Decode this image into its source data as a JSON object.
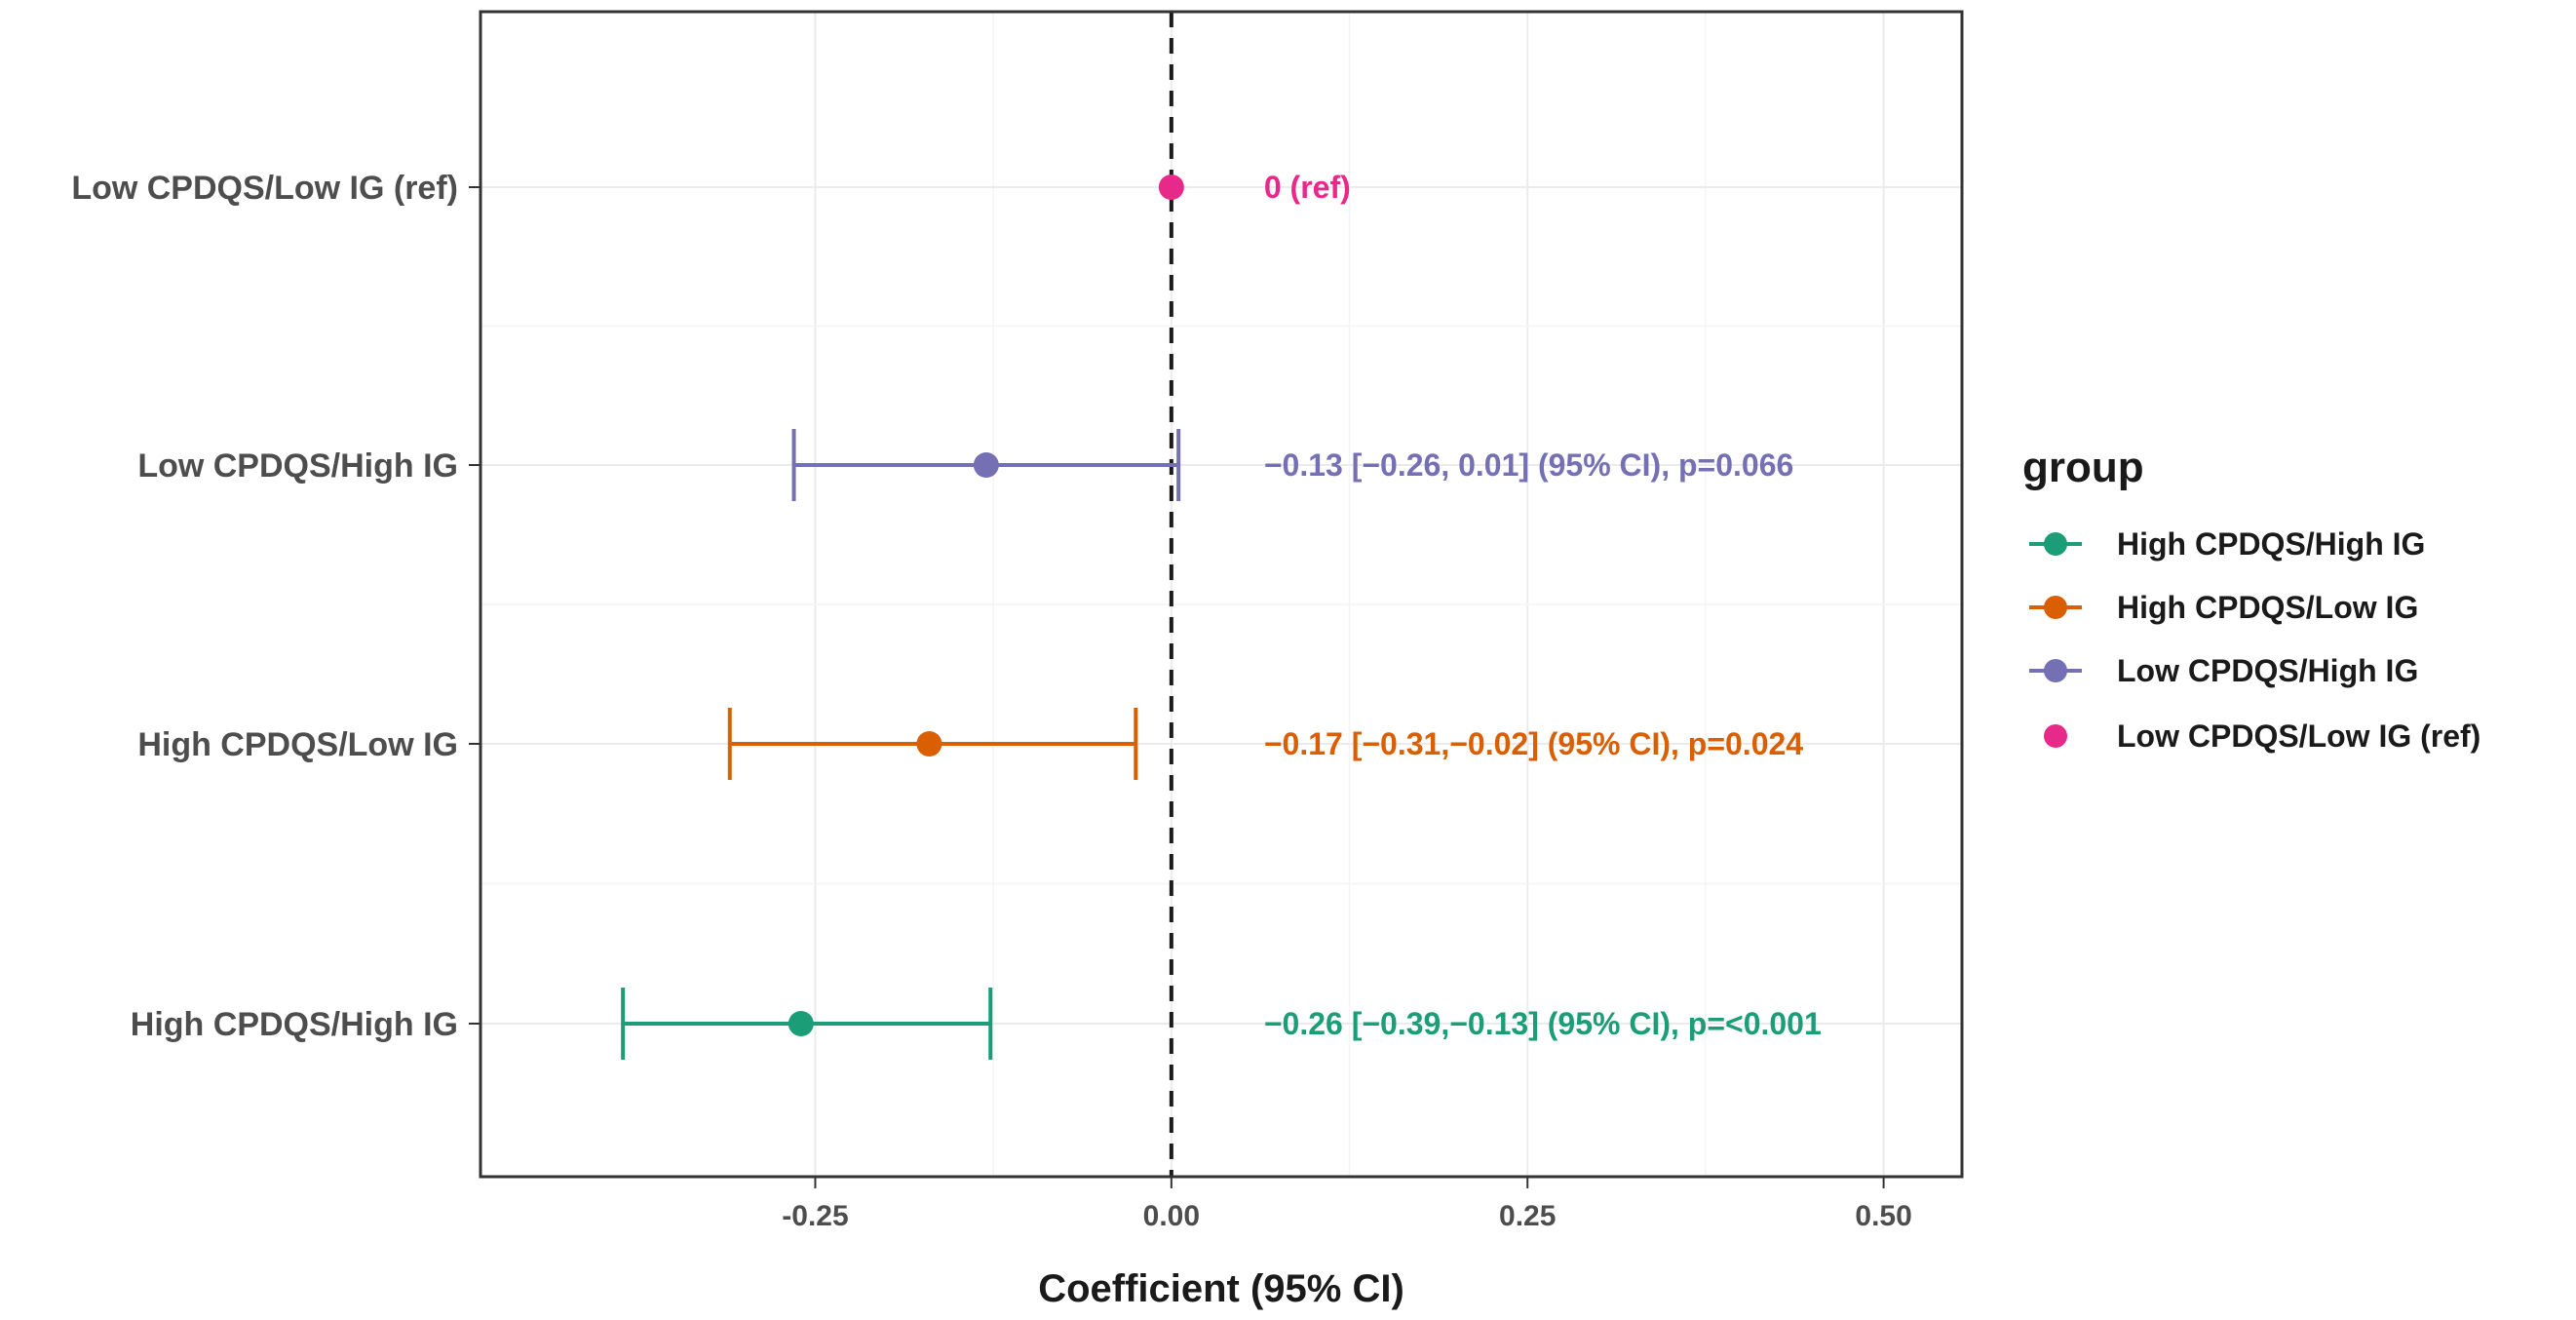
{
  "chart_data": {
    "type": "forest",
    "xlabel": "Coefficient (95% CI)",
    "xlim": [
      -0.485,
      0.555
    ],
    "xticks": [
      -0.25,
      0.0,
      0.25,
      0.5
    ],
    "xtick_labels": [
      "-0.25",
      "0.00",
      "0.25",
      "0.50"
    ],
    "reference_line": 0,
    "grid": true,
    "legend_title": "group",
    "legend_position": "right",
    "rows": [
      {
        "label": "Low CPDQS/Low IG (ref)",
        "estimate": 0.0,
        "lower": null,
        "upper": null,
        "annotation": "0 (ref)",
        "color": "#e7298a"
      },
      {
        "label": "Low CPDQS/High IG",
        "estimate": -0.13,
        "lower": -0.265,
        "upper": 0.005,
        "annotation": "−0.13 [−0.26, 0.01] (95% CI), p=0.066",
        "color": "#7570b3"
      },
      {
        "label": "High CPDQS/Low IG",
        "estimate": -0.17,
        "lower": -0.31,
        "upper": -0.025,
        "annotation": "−0.17 [−0.31,−0.02] (95% CI), p=0.024",
        "color": "#d95f02"
      },
      {
        "label": "High CPDQS/High IG",
        "estimate": -0.26,
        "lower": -0.385,
        "upper": -0.127,
        "annotation": "−0.26 [−0.39,−0.13] (95% CI), p=<0.001",
        "color": "#1b9e77"
      }
    ],
    "legend": [
      {
        "label": "High CPDQS/High IG",
        "color": "#1b9e77",
        "line": true
      },
      {
        "label": "High CPDQS/Low IG",
        "color": "#d95f02",
        "line": true
      },
      {
        "label": "Low CPDQS/High IG",
        "color": "#7570b3",
        "line": true
      },
      {
        "label": "Low CPDQS/Low IG (ref)",
        "color": "#e7298a",
        "line": false
      }
    ]
  }
}
